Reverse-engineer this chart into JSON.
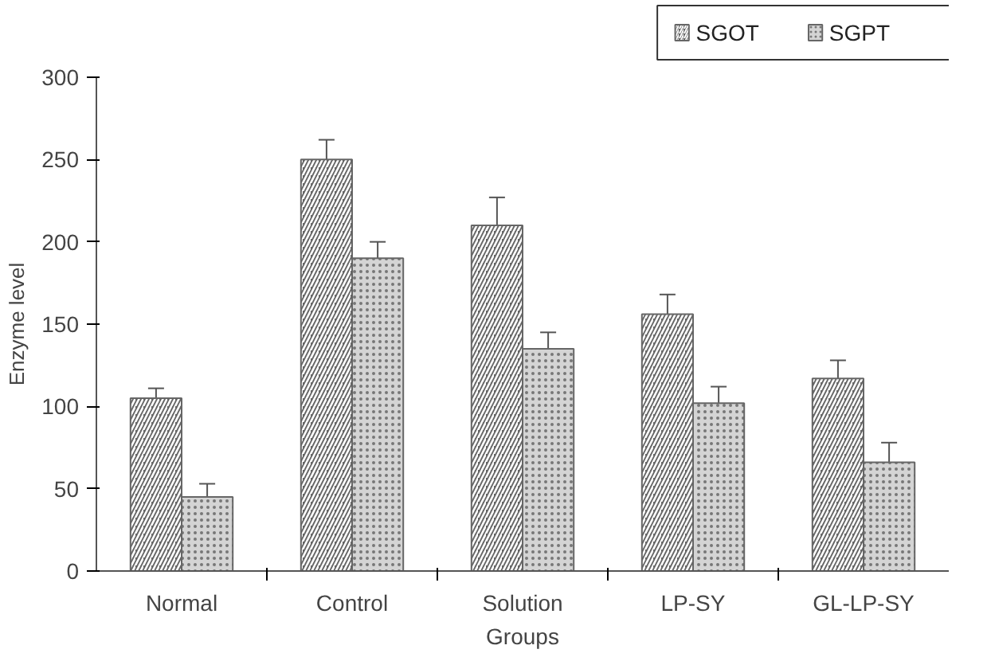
{
  "chart_data": {
    "type": "bar",
    "xlabel": "Groups",
    "ylabel": "Enzyme level",
    "categories": [
      "Normal",
      "Control",
      "Solution",
      "LP-SY",
      "GL-LP-SY"
    ],
    "series": [
      {
        "name": "SGOT",
        "color": "#666666",
        "values": [
          105,
          250,
          210,
          156,
          117
        ],
        "errors": [
          6,
          12,
          17,
          12,
          11
        ]
      },
      {
        "name": "SGPT",
        "color": "#d4d4d4",
        "values": [
          45,
          190,
          135,
          102,
          66
        ],
        "errors": [
          8,
          10,
          10,
          10,
          12
        ]
      }
    ],
    "ylim": [
      0,
      300
    ],
    "yticks": [
      0,
      50,
      100,
      150,
      200,
      250,
      300
    ],
    "grid": false,
    "legend": "top right"
  }
}
